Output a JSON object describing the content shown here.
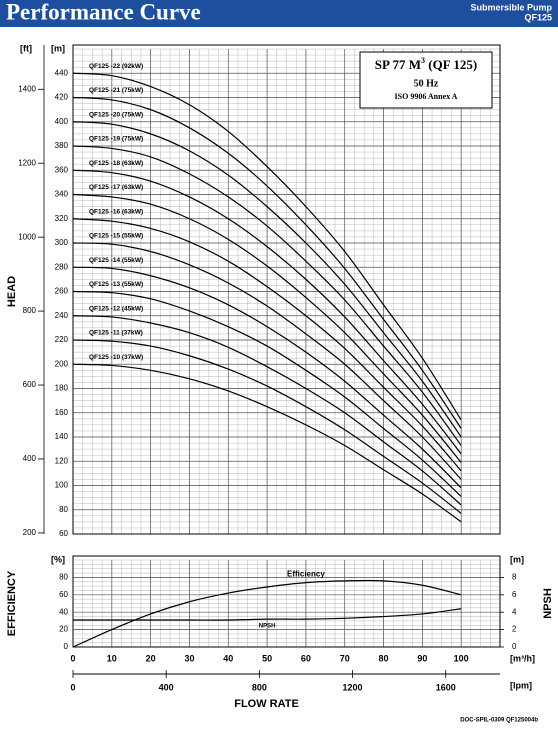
{
  "header": {
    "title": "Performance Curve",
    "product": "Submersible Pump",
    "model": "QF125"
  },
  "info_box": {
    "title_main": "SP 77 M",
    "title_sup": "3",
    "title_rest": " (QF 125)",
    "frequency": "50 Hz",
    "standard": "ISO 9906 Annex A"
  },
  "doc_id": "DOC-SPIL-0309 QF125004b",
  "chart_data": [
    {
      "type": "line",
      "ylabel": "HEAD",
      "y_unit": "[m]",
      "y2_unit": "[ft]",
      "x": [
        0,
        10,
        20,
        30,
        40,
        50,
        60,
        70,
        80,
        90,
        100
      ],
      "xlim": [
        0,
        110
      ],
      "xticks": [
        0,
        10,
        20,
        30,
        40,
        50,
        60,
        70,
        80,
        90,
        100
      ],
      "ylim": [
        60,
        460
      ],
      "yticks": [
        60,
        80,
        100,
        120,
        140,
        160,
        180,
        200,
        220,
        240,
        260,
        280,
        300,
        320,
        340,
        360,
        380,
        400,
        420,
        440
      ],
      "y2lim": [
        197,
        1509
      ],
      "y2ticks": [
        200,
        400,
        600,
        800,
        1000,
        1200,
        1400
      ],
      "grid": true,
      "series": [
        {
          "name": "QF125 -22 (92kW)",
          "color": "#000000",
          "values": [
            440,
            438,
            429,
            414,
            392,
            363,
            330,
            293,
            249,
            205,
            154
          ]
        },
        {
          "name": "QF125 -21 (75kW)",
          "color": "#000000",
          "values": [
            420,
            418,
            410,
            395,
            374,
            347,
            315,
            279,
            237,
            195,
            147
          ]
        },
        {
          "name": "QF125 -20 (75kW)",
          "color": "#000000",
          "values": [
            400,
            398,
            390,
            376,
            356,
            330,
            300,
            266,
            226,
            186,
            140
          ]
        },
        {
          "name": "QF125 -19 (75kW)",
          "color": "#000000",
          "values": [
            380,
            378,
            371,
            357,
            338,
            314,
            285,
            253,
            215,
            177,
            133
          ]
        },
        {
          "name": "QF125 -18 (63kW)",
          "color": "#000000",
          "values": [
            360,
            358,
            351,
            338,
            320,
            297,
            270,
            239,
            203,
            167,
            126
          ]
        },
        {
          "name": "QF125 -17 (63kW)",
          "color": "#000000",
          "values": [
            340,
            338,
            332,
            320,
            303,
            281,
            255,
            226,
            192,
            158,
            119
          ]
        },
        {
          "name": "QF125 -16 (63kW)",
          "color": "#000000",
          "values": [
            320,
            318,
            312,
            301,
            285,
            264,
            240,
            213,
            181,
            149,
            112
          ]
        },
        {
          "name": "QF125 -15 (55kW)",
          "color": "#000000",
          "values": [
            300,
            299,
            293,
            282,
            267,
            248,
            225,
            200,
            170,
            140,
            105
          ]
        },
        {
          "name": "QF125 -14 (55kW)",
          "color": "#000000",
          "values": [
            280,
            279,
            273,
            263,
            249,
            231,
            210,
            186,
            158,
            130,
            98
          ]
        },
        {
          "name": "QF125 -13 (55kW)",
          "color": "#000000",
          "values": [
            260,
            259,
            254,
            244,
            231,
            215,
            195,
            173,
            147,
            121,
            91
          ]
        },
        {
          "name": "QF125 -12 (45kW)",
          "color": "#000000",
          "values": [
            240,
            239,
            234,
            226,
            214,
            198,
            180,
            160,
            136,
            112,
            84
          ]
        },
        {
          "name": "QF125 -11 (37kW)",
          "color": "#000000",
          "values": [
            220,
            219,
            215,
            207,
            196,
            182,
            165,
            146,
            124,
            102,
            77
          ]
        },
        {
          "name": "QF125 -10 (37kW)",
          "color": "#000000",
          "values": [
            200,
            199,
            195,
            188,
            178,
            165,
            150,
            133,
            113,
            93,
            70
          ]
        }
      ]
    },
    {
      "type": "line",
      "ylabel": "EFFICIENCY",
      "y_unit": "[%]",
      "y2label": "NPSH",
      "y2_unit": "[m]",
      "x": [
        0,
        10,
        20,
        30,
        40,
        50,
        60,
        70,
        80,
        90,
        100
      ],
      "xlim": [
        0,
        110
      ],
      "xticks": [
        0,
        10,
        20,
        30,
        40,
        50,
        60,
        70,
        80,
        90,
        100
      ],
      "x_unit": "[m³/h]",
      "x2lim": [
        0,
        1833
      ],
      "x2ticks": [
        0,
        400,
        800,
        1200,
        1600
      ],
      "x2_unit": "[lpm]",
      "xlabel": "FLOW RATE",
      "ylim": [
        0,
        100
      ],
      "yticks": [
        0,
        20,
        40,
        60,
        80
      ],
      "y2lim": [
        0,
        10
      ],
      "y2ticks": [
        0,
        2,
        4,
        6,
        8
      ],
      "grid": true,
      "series": [
        {
          "name": "Efficiency",
          "color": "#000000",
          "values": [
            0,
            20,
            38,
            52,
            62,
            69,
            74,
            76,
            76,
            71,
            60
          ]
        },
        {
          "name": "NPSH",
          "color": "#000000",
          "axis": "y2",
          "values": [
            3.1,
            3.1,
            3.1,
            3.1,
            3.1,
            3.2,
            3.2,
            3.3,
            3.5,
            3.8,
            4.4
          ]
        }
      ]
    }
  ]
}
